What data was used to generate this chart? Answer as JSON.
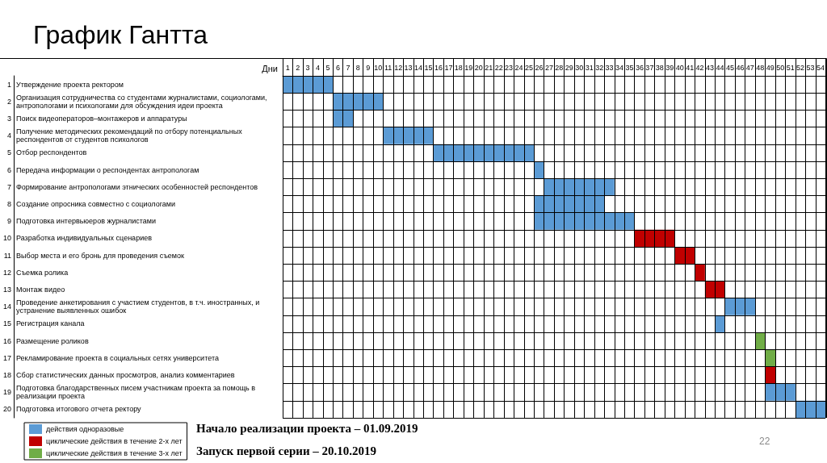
{
  "chart_data": {
    "type": "bar",
    "orientation": "horizontal",
    "title": "График Гантта",
    "xlabel": "Дни",
    "categories": [
      "Утверждение проекта ректором",
      "Организация сотрудничества со студентами журналистами, социологами, антропологами и психологами для обсуждения идеи проекта",
      "Поиск видеоператоров–монтажеров и аппаратуры",
      "Получение методических рекомендаций по отбору потенциальных респондентов от студентов психологов",
      "Отбор респондентов",
      "Передача информации о респондентах антропологам",
      "Формирование антропологами этнических особенностей респондентов",
      "Создание опросника совместно с социологами",
      "Подготовка интервьюеров журналистами",
      "Разработка индивидуальных сценариев",
      "Выбор места и его бронь для проведения съемок",
      "Съемка ролика",
      "Монтаж видео",
      "Проведение анкетирования с участием студентов, в т.ч. иностранных, и устранение выявленных ошибок",
      "Регистрация канала",
      "Размещение роликов",
      "Рекламирование проекта в социальных сетях университета",
      "Сбор статистических данных просмотров, анализ комментариев",
      "Подготовка благодарственных писем участникам проекта за помощь в реализации проекта",
      "Подготовка итогового отчета ректору"
    ],
    "y2_categories": [
      "1",
      "2",
      "3",
      "4",
      "5",
      "6",
      "7",
      "8",
      "9",
      "10",
      "11",
      "12",
      "13",
      "14",
      "15",
      "16",
      "17",
      "18",
      "19",
      "20"
    ],
    "xlim": [
      0.5,
      54.5
    ],
    "xticks": [
      1,
      2,
      3,
      4,
      5,
      6,
      7,
      8,
      9,
      10,
      11,
      12,
      13,
      14,
      15,
      16,
      17,
      18,
      19,
      20,
      21,
      22,
      23,
      24,
      25,
      26,
      27,
      28,
      29,
      30,
      31,
      32,
      33,
      34,
      35,
      36,
      37,
      38,
      39,
      40,
      41,
      42,
      43,
      44,
      45,
      46,
      47,
      48,
      49,
      50,
      51,
      52,
      53,
      54
    ],
    "grid": true,
    "legend": "bottom left",
    "annotations": [
      "Начало реализации проекта – 01.09.2019",
      "Запуск первой серии – 20.10.2019",
      "22"
    ],
    "series": [
      {
        "name": "действия одноразовые",
        "color": "#5b9bd5",
        "values": [
          5,
          5,
          2,
          5,
          10,
          1,
          7,
          7,
          10,
          null,
          null,
          null,
          null,
          3,
          1,
          null,
          null,
          null,
          3,
          3
        ],
        "base": [
          0.5,
          5.5,
          5.5,
          10.5,
          15.5,
          25.5,
          26.5,
          25.5,
          25.5,
          null,
          null,
          null,
          null,
          44.5,
          43.5,
          null,
          null,
          null,
          48.5,
          51.5
        ]
      },
      {
        "name": "циклические действия в течение 2-х лет",
        "color": "#c00000",
        "values": [
          null,
          null,
          null,
          null,
          null,
          null,
          null,
          null,
          null,
          4,
          2,
          1,
          2,
          null,
          null,
          null,
          null,
          1,
          null,
          null
        ],
        "base": [
          null,
          null,
          null,
          null,
          null,
          null,
          null,
          null,
          null,
          35.5,
          39.5,
          41.5,
          42.5,
          null,
          null,
          null,
          null,
          48.5,
          null,
          null
        ]
      },
      {
        "name": "циклические действия в течение 3-х лет",
        "color": "#70ad47",
        "values": [
          null,
          null,
          null,
          null,
          null,
          null,
          null,
          null,
          null,
          null,
          null,
          null,
          null,
          null,
          null,
          1,
          1,
          null,
          null,
          null
        ],
        "base": [
          null,
          null,
          null,
          null,
          null,
          null,
          null,
          null,
          null,
          null,
          null,
          null,
          null,
          null,
          null,
          47.5,
          48.5,
          null,
          null,
          null
        ]
      }
    ]
  }
}
